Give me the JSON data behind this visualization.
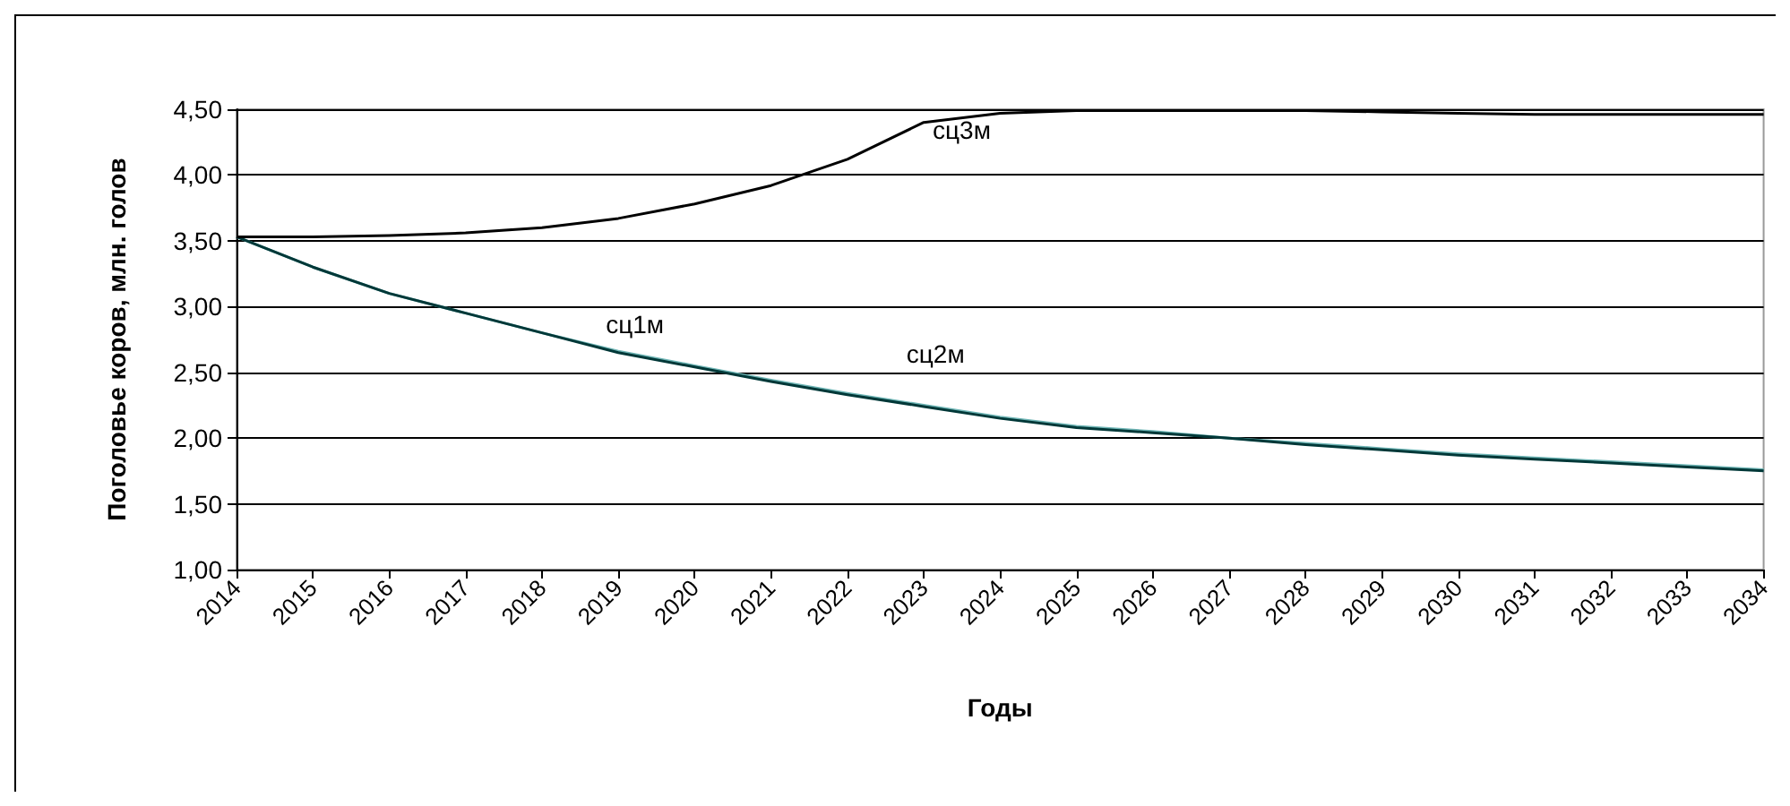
{
  "chart_data": {
    "type": "line",
    "xlabel": "Годы",
    "ylabel": "Поголовье коров, млн. голов",
    "x": [
      2014,
      2015,
      2016,
      2017,
      2018,
      2019,
      2020,
      2021,
      2022,
      2023,
      2024,
      2025,
      2026,
      2027,
      2028,
      2029,
      2030,
      2031,
      2032,
      2033,
      2034
    ],
    "xlim": [
      2014,
      2034
    ],
    "xticks": [
      2014,
      2015,
      2016,
      2017,
      2018,
      2019,
      2020,
      2021,
      2022,
      2023,
      2024,
      2025,
      2026,
      2027,
      2028,
      2029,
      2030,
      2031,
      2032,
      2033,
      2034
    ],
    "ylim": [
      1,
      4.5
    ],
    "yticks": [
      {
        "value": 1,
        "label": "1,00"
      },
      {
        "value": 1.5,
        "label": "1,50"
      },
      {
        "value": 2,
        "label": "2,00"
      },
      {
        "value": 2.5,
        "label": "2,50"
      },
      {
        "value": 3,
        "label": "3,00"
      },
      {
        "value": 3.5,
        "label": "3,50"
      },
      {
        "value": 4,
        "label": "4,00"
      },
      {
        "value": 4.5,
        "label": "4,50"
      }
    ],
    "series": [
      {
        "name": "сц2м",
        "color": "#6fb5b5",
        "values": [
          3.53,
          3.3,
          3.1,
          2.95,
          2.8,
          2.66,
          2.55,
          2.44,
          2.34,
          2.25,
          2.16,
          2.09,
          2.05,
          2.0,
          1.96,
          1.92,
          1.88,
          1.85,
          1.82,
          1.79,
          1.76
        ]
      },
      {
        "name": "сц1м",
        "color": "#003838",
        "values": [
          3.53,
          3.3,
          3.1,
          2.95,
          2.8,
          2.65,
          2.54,
          2.43,
          2.33,
          2.24,
          2.15,
          2.08,
          2.04,
          2.0,
          1.95,
          1.91,
          1.87,
          1.84,
          1.81,
          1.78,
          1.75
        ]
      },
      {
        "name": "сц3м",
        "color": "#000000",
        "values": [
          3.53,
          3.53,
          3.54,
          3.56,
          3.6,
          3.67,
          3.78,
          3.92,
          4.12,
          4.4,
          4.47,
          4.49,
          4.49,
          4.49,
          4.49,
          4.48,
          4.47,
          4.46,
          4.46,
          4.46,
          4.46
        ]
      }
    ],
    "grid": "y",
    "marker": "none",
    "line_style": "solid"
  }
}
